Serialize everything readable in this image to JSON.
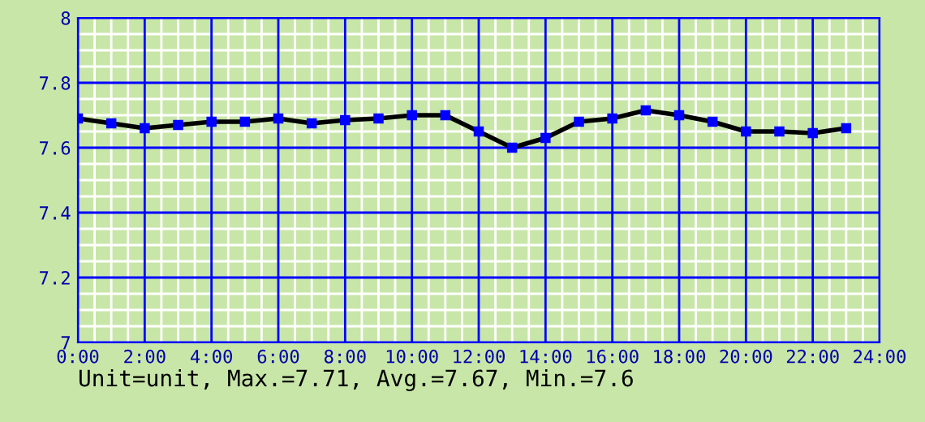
{
  "chart_data": {
    "type": "line",
    "x": [
      0,
      1,
      2,
      3,
      4,
      5,
      6,
      7,
      8,
      9,
      10,
      11,
      12,
      13,
      14,
      15,
      16,
      17,
      18,
      19,
      20,
      21,
      22,
      23
    ],
    "series": [
      {
        "color": "#000000",
        "values": [
          7.69,
          7.675,
          7.66,
          7.67,
          7.68,
          7.68,
          7.69,
          7.675,
          7.685,
          7.69,
          7.7,
          7.7,
          7.65,
          7.6,
          7.63,
          7.68,
          7.69,
          7.715,
          7.7,
          7.68,
          7.65,
          7.65,
          7.645,
          7.66
        ]
      }
    ],
    "xlim": [
      0,
      24
    ],
    "xticks": [
      {
        "value": 0,
        "label": "0:00"
      },
      {
        "value": 2,
        "label": "2:00"
      },
      {
        "value": 4,
        "label": "4:00"
      },
      {
        "value": 6,
        "label": "6:00"
      },
      {
        "value": 8,
        "label": "8:00"
      },
      {
        "value": 10,
        "label": "10:00"
      },
      {
        "value": 12,
        "label": "12:00"
      },
      {
        "value": 14,
        "label": "14:00"
      },
      {
        "value": 16,
        "label": "16:00"
      },
      {
        "value": 18,
        "label": "18:00"
      },
      {
        "value": 20,
        "label": "20:00"
      },
      {
        "value": 22,
        "label": "22:00"
      },
      {
        "value": 24,
        "label": "24:00"
      }
    ],
    "ylim": [
      7,
      8
    ],
    "yticks": [
      7,
      7.2,
      7.4,
      7.6,
      7.8,
      8
    ],
    "grid": true,
    "marker": "square",
    "line_style": "solid",
    "annotations": [
      "Unit=unit, Max.=7.71, Avg.=7.67, Min.=7.6"
    ]
  }
}
